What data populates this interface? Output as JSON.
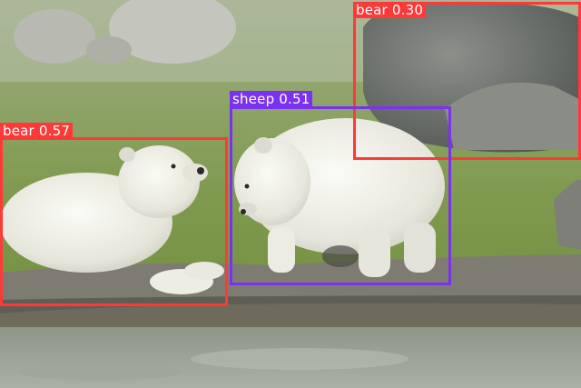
{
  "detections": [
    {
      "label": "bear 0.30",
      "color": "#ff3838"
    },
    {
      "label": "sheep 0.51",
      "color": "#7b32f0"
    },
    {
      "label": "bear 0.57",
      "color": "#ff3838"
    }
  ]
}
